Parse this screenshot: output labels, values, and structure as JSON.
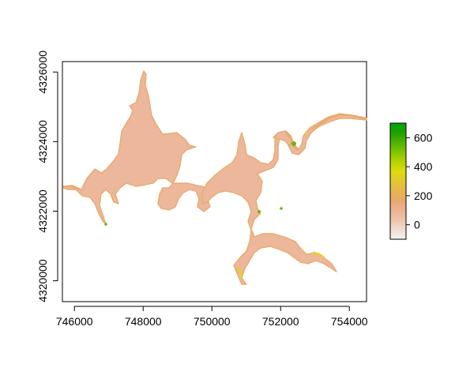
{
  "chart_data": {
    "type": "heatmap",
    "title": "",
    "xlabel": "",
    "ylabel": "",
    "xlim": [
      745650,
      754500
    ],
    "ylim": [
      4319400,
      4326300
    ],
    "x_ticks": [
      746000,
      748000,
      750000,
      752000,
      754000
    ],
    "x_tick_labels": [
      "746000",
      "748000",
      "750000",
      "752000",
      "754000"
    ],
    "y_ticks": [
      4320000,
      4322000,
      4324000,
      4326000
    ],
    "y_tick_labels": [
      "4320000",
      "4322000",
      "4324000",
      "4326000"
    ],
    "grid": false,
    "legend_position": "right",
    "colorbar": {
      "min": -100,
      "max": 700,
      "ticks": [
        0,
        200,
        400,
        600
      ],
      "tick_labels": [
        "0",
        "200",
        "400",
        "600"
      ],
      "gradient": [
        "#f2f2f2",
        "#f0dcd0",
        "#ecc4ac",
        "#ebb393",
        "#e8a86f",
        "#e4b74c",
        "#e2c72d",
        "#dedb0f",
        "#b4d500",
        "#82c500",
        "#4fb300",
        "#1fa000",
        "#00a600"
      ]
    },
    "raster_colors": {
      "body": "#ecb79b",
      "edge": "#e8ab6e",
      "shallow": "#e3cf36",
      "high": "#63b90a"
    }
  }
}
